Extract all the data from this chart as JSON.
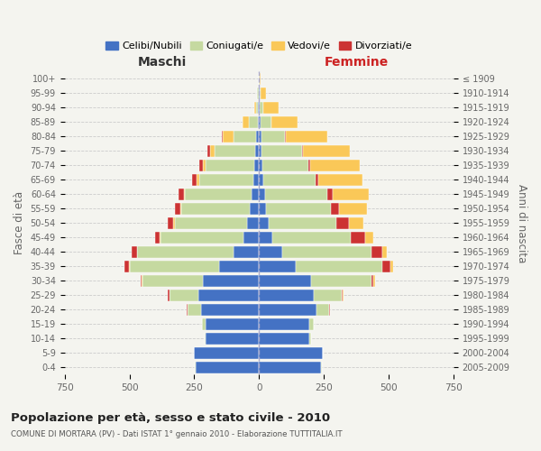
{
  "age_groups": [
    "0-4",
    "5-9",
    "10-14",
    "15-19",
    "20-24",
    "25-29",
    "30-34",
    "35-39",
    "40-44",
    "45-49",
    "50-54",
    "55-59",
    "60-64",
    "65-69",
    "70-74",
    "75-79",
    "80-84",
    "85-89",
    "90-94",
    "95-99",
    "100+"
  ],
  "birth_years": [
    "2005-2009",
    "2000-2004",
    "1995-1999",
    "1990-1994",
    "1985-1989",
    "1980-1984",
    "1975-1979",
    "1970-1974",
    "1965-1969",
    "1960-1964",
    "1955-1959",
    "1950-1954",
    "1945-1949",
    "1940-1944",
    "1935-1939",
    "1930-1934",
    "1925-1929",
    "1920-1924",
    "1915-1919",
    "1910-1914",
    "≤ 1909"
  ],
  "male_celibi": [
    245,
    250,
    205,
    205,
    225,
    235,
    215,
    155,
    100,
    60,
    45,
    35,
    30,
    22,
    20,
    15,
    10,
    5,
    3,
    2,
    0
  ],
  "male_coniugati": [
    2,
    2,
    5,
    15,
    50,
    110,
    235,
    345,
    370,
    320,
    280,
    265,
    255,
    210,
    185,
    155,
    90,
    35,
    10,
    5,
    2
  ],
  "male_vedovi": [
    0,
    0,
    0,
    0,
    2,
    2,
    2,
    2,
    2,
    3,
    5,
    5,
    5,
    10,
    12,
    20,
    40,
    25,
    5,
    2,
    0
  ],
  "male_divorziati": [
    0,
    0,
    0,
    0,
    3,
    5,
    5,
    18,
    20,
    18,
    22,
    18,
    22,
    16,
    12,
    8,
    3,
    0,
    0,
    0,
    0
  ],
  "female_nubili": [
    240,
    245,
    195,
    195,
    220,
    210,
    200,
    140,
    90,
    52,
    38,
    28,
    25,
    18,
    12,
    10,
    8,
    5,
    3,
    2,
    0
  ],
  "female_coniugate": [
    2,
    2,
    5,
    15,
    50,
    108,
    232,
    335,
    345,
    300,
    260,
    250,
    238,
    200,
    178,
    155,
    92,
    42,
    12,
    5,
    2
  ],
  "female_divorziate": [
    0,
    0,
    0,
    0,
    3,
    5,
    10,
    32,
    42,
    58,
    48,
    32,
    22,
    10,
    8,
    5,
    2,
    0,
    0,
    0,
    0
  ],
  "female_vedove": [
    0,
    0,
    0,
    0,
    2,
    3,
    5,
    10,
    15,
    32,
    58,
    108,
    138,
    170,
    192,
    180,
    160,
    100,
    60,
    20,
    3
  ],
  "colors": {
    "celibi": "#4472c4",
    "coniugati": "#c5d9a0",
    "vedovi": "#fac858",
    "divorziati": "#cc3333"
  },
  "title": "Popolazione per età, sesso e stato civile - 2010",
  "subtitle": "COMUNE DI MORTARA (PV) - Dati ISTAT 1° gennaio 2010 - Elaborazione TUTTITALIA.IT",
  "ylabel_left": "Fasce di età",
  "ylabel_right": "Anni di nascita",
  "xlabel_left": "Maschi",
  "xlabel_right": "Femmine",
  "xlim": 750,
  "bg_color": "#f4f4ef",
  "legend_labels": [
    "Celibi/Nubili",
    "Coniugati/e",
    "Vedovi/e",
    "Divorziati/e"
  ]
}
